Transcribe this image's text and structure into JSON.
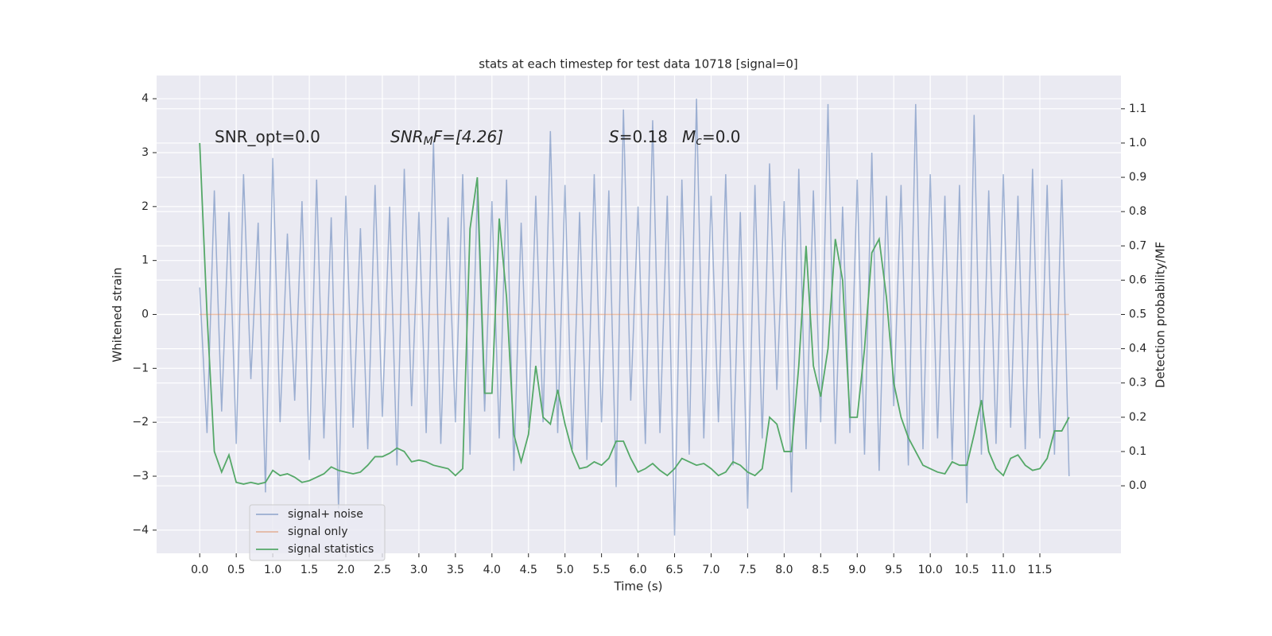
{
  "chart_data": {
    "type": "line",
    "title": "stats at each timestep for test data 10718 [signal=0]",
    "xlabel": "Time (s)",
    "ylabel": "Whitened strain",
    "y2label": "Detection probability/MF",
    "annotations": [
      {
        "base": "SNR_opt=0.0"
      },
      {
        "base": "SNR",
        "sub": "M",
        "rest": "F=[4.26]"
      },
      {
        "base": "S",
        "rest": "=0.18"
      },
      {
        "base": "M",
        "sub": "c",
        "rest": "=0.0"
      }
    ],
    "x": [
      0.0,
      0.1,
      0.2,
      0.3,
      0.4,
      0.5,
      0.6,
      0.7,
      0.8,
      0.9,
      1.0,
      1.1,
      1.2,
      1.3,
      1.4,
      1.5,
      1.6,
      1.7,
      1.8,
      1.9,
      2.0,
      2.1,
      2.2,
      2.3,
      2.4,
      2.5,
      2.6,
      2.7,
      2.8,
      2.9,
      3.0,
      3.1,
      3.2,
      3.3,
      3.4,
      3.5,
      3.6,
      3.7,
      3.8,
      3.9,
      4.0,
      4.1,
      4.2,
      4.3,
      4.4,
      4.5,
      4.6,
      4.7,
      4.8,
      4.9,
      5.0,
      5.1,
      5.2,
      5.3,
      5.4,
      5.5,
      5.6,
      5.7,
      5.8,
      5.9,
      6.0,
      6.1,
      6.2,
      6.3,
      6.4,
      6.5,
      6.6,
      6.7,
      6.8,
      6.9,
      7.0,
      7.1,
      7.2,
      7.3,
      7.4,
      7.5,
      7.6,
      7.7,
      7.8,
      7.9,
      8.0,
      8.1,
      8.2,
      8.3,
      8.4,
      8.5,
      8.6,
      8.7,
      8.8,
      8.9,
      9.0,
      9.1,
      9.2,
      9.3,
      9.4,
      9.5,
      9.6,
      9.7,
      9.8,
      9.9,
      10.0,
      10.1,
      10.2,
      10.3,
      10.4,
      10.5,
      10.6,
      10.7,
      10.8,
      10.9,
      11.0,
      11.1,
      11.2,
      11.3,
      11.4,
      11.5,
      11.6,
      11.7,
      11.8,
      11.9
    ],
    "series": [
      {
        "name": "signal+ noise",
        "color": "#4c72b0",
        "values": [
          0.5,
          -2.2,
          2.3,
          -1.8,
          1.9,
          -2.4,
          2.6,
          -1.2,
          1.7,
          -3.3,
          2.9,
          -2.0,
          1.5,
          -1.6,
          2.1,
          -2.7,
          2.5,
          -2.3,
          1.8,
          -3.6,
          2.2,
          -2.1,
          1.6,
          -2.5,
          2.4,
          -1.9,
          2.0,
          -2.8,
          2.7,
          -1.7,
          1.9,
          -2.2,
          3.2,
          -2.4,
          1.8,
          -2.0,
          2.6,
          -2.6,
          2.3,
          -1.8,
          2.1,
          -2.3,
          2.5,
          -2.9,
          1.7,
          -2.1,
          2.2,
          -2.0,
          3.4,
          -2.2,
          2.4,
          -2.5,
          1.9,
          -2.7,
          2.6,
          -2.0,
          2.3,
          -3.2,
          3.8,
          -1.6,
          2.0,
          -2.4,
          3.6,
          -2.2,
          2.2,
          -4.1,
          2.5,
          -2.6,
          4.0,
          -2.3,
          2.2,
          -2.0,
          2.6,
          -2.8,
          1.9,
          -3.6,
          2.4,
          -2.3,
          2.8,
          -1.4,
          2.1,
          -3.3,
          2.7,
          -2.5,
          2.3,
          -2.0,
          3.9,
          -2.4,
          2.0,
          -2.2,
          2.5,
          -2.6,
          3.0,
          -2.9,
          2.2,
          -1.7,
          2.4,
          -2.8,
          3.9,
          -2.5,
          2.6,
          -2.3,
          2.2,
          -2.7,
          2.4,
          -3.5,
          3.7,
          -2.6,
          2.3,
          -2.4,
          2.6,
          -2.1,
          2.2,
          -2.5,
          2.7,
          -2.3,
          2.4,
          -2.6,
          2.5,
          -3.0
        ]
      },
      {
        "name": "signal only",
        "color": "#dd8452",
        "values": [
          0,
          0,
          0,
          0,
          0,
          0,
          0,
          0,
          0,
          0,
          0,
          0,
          0,
          0,
          0,
          0,
          0,
          0,
          0,
          0,
          0,
          0,
          0,
          0,
          0,
          0,
          0,
          0,
          0,
          0,
          0,
          0,
          0,
          0,
          0,
          0,
          0,
          0,
          0,
          0,
          0,
          0,
          0,
          0,
          0,
          0,
          0,
          0,
          0,
          0,
          0,
          0,
          0,
          0,
          0,
          0,
          0,
          0,
          0,
          0,
          0,
          0,
          0,
          0,
          0,
          0,
          0,
          0,
          0,
          0,
          0,
          0,
          0,
          0,
          0,
          0,
          0,
          0,
          0,
          0,
          0,
          0,
          0,
          0,
          0,
          0,
          0,
          0,
          0,
          0,
          0,
          0,
          0,
          0,
          0,
          0,
          0,
          0,
          0,
          0,
          0,
          0,
          0,
          0,
          0,
          0,
          0,
          0,
          0,
          0,
          0,
          0,
          0,
          0,
          0,
          0,
          0,
          0,
          0,
          0
        ]
      },
      {
        "name": "signal statistics",
        "color": "#55a868",
        "axis": "y2",
        "values": [
          1.0,
          0.5,
          0.1,
          0.04,
          0.09,
          0.01,
          0.005,
          0.01,
          0.005,
          0.01,
          0.045,
          0.03,
          0.035,
          0.025,
          0.01,
          0.015,
          0.025,
          0.035,
          0.055,
          0.045,
          0.04,
          0.035,
          0.04,
          0.06,
          0.085,
          0.085,
          0.095,
          0.11,
          0.1,
          0.07,
          0.075,
          0.07,
          0.06,
          0.055,
          0.05,
          0.03,
          0.05,
          0.75,
          0.9,
          0.27,
          0.27,
          0.78,
          0.55,
          0.15,
          0.07,
          0.15,
          0.35,
          0.2,
          0.18,
          0.28,
          0.18,
          0.1,
          0.05,
          0.055,
          0.07,
          0.06,
          0.08,
          0.13,
          0.13,
          0.08,
          0.04,
          0.05,
          0.065,
          0.045,
          0.03,
          0.05,
          0.08,
          0.07,
          0.06,
          0.065,
          0.05,
          0.03,
          0.04,
          0.07,
          0.06,
          0.04,
          0.03,
          0.05,
          0.2,
          0.18,
          0.1,
          0.1,
          0.35,
          0.7,
          0.35,
          0.26,
          0.4,
          0.72,
          0.6,
          0.2,
          0.2,
          0.4,
          0.68,
          0.72,
          0.55,
          0.3,
          0.2,
          0.14,
          0.1,
          0.06,
          0.05,
          0.04,
          0.035,
          0.07,
          0.06,
          0.06,
          0.15,
          0.25,
          0.1,
          0.05,
          0.03,
          0.08,
          0.09,
          0.06,
          0.045,
          0.05,
          0.08,
          0.16,
          0.16,
          0.2
        ]
      }
    ],
    "xlim": [
      -0.59,
      12.61
    ],
    "xticks": [
      {
        "value": 0.0,
        "label": "0.0"
      },
      0.5,
      {
        "value": 1.0,
        "label": "1.0"
      },
      1.5,
      {
        "value": 2.0,
        "label": "2.0"
      },
      2.5,
      {
        "value": 3.0,
        "label": "3.0"
      },
      3.5,
      {
        "value": 4.0,
        "label": "4.0"
      },
      4.5,
      {
        "value": 5.0,
        "label": "5.0"
      },
      5.5,
      {
        "value": 6.0,
        "label": "6.0"
      },
      6.5,
      {
        "value": 7.0,
        "label": "7.0"
      },
      7.5,
      {
        "value": 8.0,
        "label": "8.0"
      },
      8.5,
      {
        "value": 9.0,
        "label": "9.0"
      },
      9.5,
      {
        "value": 10.0,
        "label": "10.0"
      },
      10.5,
      {
        "value": 11.0,
        "label": "11.0"
      },
      11.5
    ],
    "ylim": [
      -4.43,
      4.43
    ],
    "yticks": [
      {
        "value": -4,
        "label": "−4"
      },
      {
        "value": -3,
        "label": "−3"
      },
      {
        "value": -2,
        "label": "−2"
      },
      {
        "value": -1,
        "label": "−1"
      },
      0,
      1,
      2,
      3,
      4
    ],
    "y2lim": [
      -0.197,
      1.197
    ],
    "y2ticks": [
      {
        "value": 0.0,
        "label": "0.0"
      },
      0.1,
      0.2,
      0.3,
      0.4,
      0.5,
      0.6,
      0.7,
      0.8,
      0.9,
      {
        "value": 1.0,
        "label": "1.0"
      },
      1.1
    ],
    "grid": true,
    "legend": "lower left"
  }
}
